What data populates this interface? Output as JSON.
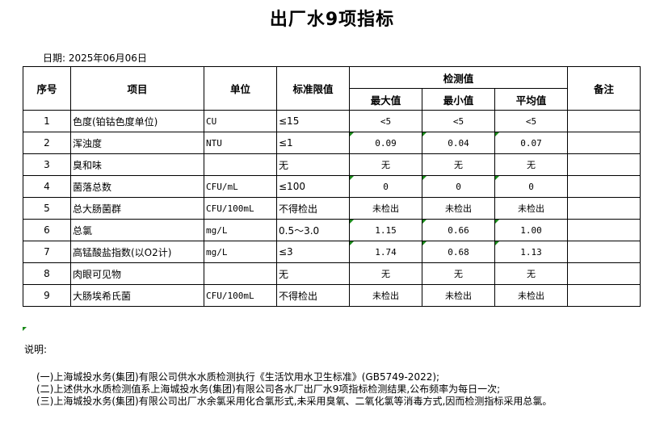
{
  "title": "出厂水9项指标",
  "date_label": "日期: 2025年06月06日",
  "table": {
    "headers": {
      "no": "序号",
      "item": "项目",
      "unit": "单位",
      "limit": "标准限值",
      "measured": "检测值",
      "max": "最大值",
      "min": "最小值",
      "avg": "平均值",
      "remark": "备注"
    },
    "rows": [
      {
        "no": "1",
        "item": "色度(铂钴色度单位)",
        "unit": "CU",
        "limit": "≤15",
        "max": "<5",
        "min": "<5",
        "avg": "<5",
        "remark": "",
        "flag": false
      },
      {
        "no": "2",
        "item": "浑浊度",
        "unit": "NTU",
        "limit": "≤1",
        "max": "0.09",
        "min": "0.04",
        "avg": "0.07",
        "remark": "",
        "flag": true
      },
      {
        "no": "3",
        "item": "臭和味",
        "unit": "",
        "limit": "无",
        "max": "无",
        "min": "无",
        "avg": "无",
        "remark": "",
        "flag": false
      },
      {
        "no": "4",
        "item": "菌落总数",
        "unit": "CFU/mL",
        "limit": "≤100",
        "max": "0",
        "min": "0",
        "avg": "0",
        "remark": "",
        "flag": true
      },
      {
        "no": "5",
        "item": "总大肠菌群",
        "unit": "CFU/100mL",
        "limit": "不得检出",
        "max": "未检出",
        "min": "未检出",
        "avg": "未检出",
        "remark": "",
        "flag": false
      },
      {
        "no": "6",
        "item": "总氯",
        "unit": "mg/L",
        "limit": "0.5～3.0",
        "max": "1.15",
        "min": "0.66",
        "avg": "1.00",
        "remark": "",
        "flag": true
      },
      {
        "no": "7",
        "item": "高锰酸盐指数(以O2计)",
        "unit": "mg/L",
        "limit": "≤3",
        "max": "1.74",
        "min": "0.68",
        "avg": "1.13",
        "remark": "",
        "flag": true
      },
      {
        "no": "8",
        "item": "肉眼可见物",
        "unit": "",
        "limit": "无",
        "max": "无",
        "min": "无",
        "avg": "无",
        "remark": "",
        "flag": false
      },
      {
        "no": "9",
        "item": "大肠埃希氏菌",
        "unit": "CFU/100mL",
        "limit": "不得检出",
        "max": "未检出",
        "min": "未检出",
        "avg": "未检出",
        "remark": "",
        "flag": false
      }
    ]
  },
  "notes": {
    "title": "说明:",
    "items": [
      "(一)上海城投水务(集团)有限公司供水水质检测执行《生活饮用水卫生标准》(GB5749-2022);",
      "(二)上述供水水质检测值系上海城投水务(集团)有限公司各水厂出厂水9项指标检测结果,公布频率为每日一次;",
      "(三)上海城投水务(集团)有限公司出厂水余氯采用化合氯形式,未采用臭氧、二氧化氯等消毒方式,因而检测指标采用总氯。"
    ]
  },
  "colors": {
    "flag": "#1a8a1a"
  }
}
